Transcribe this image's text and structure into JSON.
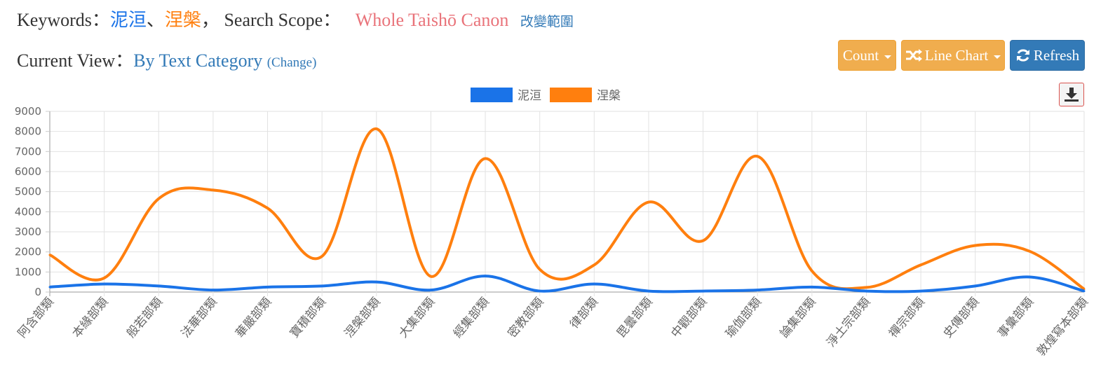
{
  "header": {
    "keywords_label": "Keywords：",
    "keyword1": "泥洹",
    "separator": "、",
    "keyword2": "涅槃",
    "comma": "，",
    "scope_label": "Search Scope：",
    "scope_value": "Whole Taishō Canon",
    "change_scope": "改變範圍",
    "view_label": "Current View：",
    "view_value": "By Text Category",
    "view_change": "(Change)"
  },
  "toolbar": {
    "count_label": "Count",
    "chart_type_label": "Line Chart",
    "refresh_label": "Refresh"
  },
  "colors": {
    "series1": "#1a73e8",
    "series2": "#ff7f0e",
    "keyword_scope": "#e9737a",
    "link": "#337ab7",
    "warning": "#f0ad4e",
    "primary": "#337ab7"
  },
  "chart_data": {
    "type": "line",
    "title": "",
    "xlabel": "",
    "ylabel": "",
    "ylim": [
      0,
      9000
    ],
    "yticks": [
      0,
      1000,
      2000,
      3000,
      4000,
      5000,
      6000,
      7000,
      8000,
      9000
    ],
    "grid": true,
    "legend": "top-center",
    "categories": [
      "阿含部類",
      "本緣部類",
      "般若部類",
      "法華部類",
      "華嚴部類",
      "寶積部類",
      "涅槃部類",
      "大集部類",
      "經集部類",
      "密教部類",
      "律部類",
      "毘曇部類",
      "中觀部類",
      "瑜伽部類",
      "論集部類",
      "淨土宗部類",
      "禪宗部類",
      "史傳部類",
      "事彙部類",
      "敦煌寫本部類"
    ],
    "series": [
      {
        "name": "泥洹",
        "color": "#1a73e8",
        "values": [
          250,
          400,
          300,
          100,
          250,
          300,
          500,
          100,
          800,
          50,
          400,
          50,
          50,
          100,
          250,
          50,
          50,
          300,
          750,
          50
        ]
      },
      {
        "name": "涅槃",
        "color": "#ff7f0e",
        "values": [
          1850,
          700,
          4650,
          5080,
          4180,
          1780,
          8130,
          780,
          6650,
          1130,
          1350,
          4480,
          2560,
          6760,
          1050,
          230,
          1350,
          2320,
          2030,
          150
        ]
      }
    ]
  }
}
